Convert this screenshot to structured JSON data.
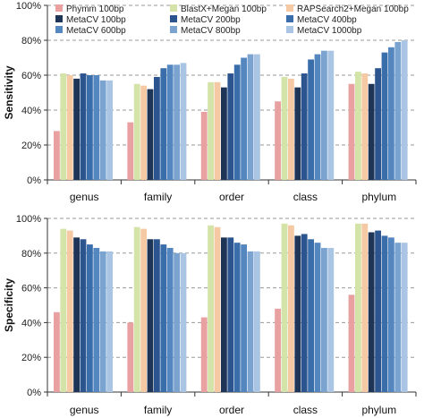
{
  "chart_data": [
    {
      "type": "bar",
      "panel": "top",
      "ylabel": "Sensitivity",
      "ylim": [
        0,
        100
      ],
      "yticks": [
        "0%",
        "20%",
        "40%",
        "60%",
        "80%",
        "100%"
      ],
      "grid": "horizontal dashed",
      "legend": "top",
      "categories": [
        "genus",
        "family",
        "order",
        "class",
        "phylum"
      ],
      "series": [
        {
          "name": "Phymm 100bp",
          "color": "#e8a0a0",
          "values": [
            28,
            33,
            39,
            45,
            55
          ]
        },
        {
          "name": "BlastX+Megan 100bp",
          "color": "#d4e3a8",
          "values": [
            61,
            55,
            56,
            59,
            62
          ]
        },
        {
          "name": "RAPSearch2+Megan 100bp",
          "color": "#f5c9a3",
          "values": [
            60,
            54,
            56,
            58,
            61
          ]
        },
        {
          "name": "MetaCV 100bp",
          "color": "#1f3558",
          "values": [
            58,
            52,
            53,
            53,
            55
          ]
        },
        {
          "name": "MetaCV 200bp",
          "color": "#2c5590",
          "values": [
            61,
            59,
            61,
            61,
            64
          ]
        },
        {
          "name": "MetaCV 400bp",
          "color": "#3a6eab",
          "values": [
            60,
            64,
            66,
            69,
            73
          ]
        },
        {
          "name": "MetaCV 600bp",
          "color": "#5487c0",
          "values": [
            60,
            66,
            70,
            72,
            76
          ]
        },
        {
          "name": "MetaCV 800bp",
          "color": "#7aa3cf",
          "values": [
            57,
            66,
            72,
            74,
            79
          ]
        },
        {
          "name": "MetaCV 1000bp",
          "color": "#a9c5e3",
          "values": [
            57,
            67,
            72,
            74,
            80
          ]
        }
      ]
    },
    {
      "type": "bar",
      "panel": "bottom",
      "ylabel": "Specificity",
      "ylim": [
        0,
        100
      ],
      "yticks": [
        "0%",
        "20%",
        "40%",
        "60%",
        "80%",
        "100%"
      ],
      "grid": "horizontal dashed",
      "categories": [
        "genus",
        "family",
        "order",
        "class",
        "phylum"
      ],
      "series": [
        {
          "name": "Phymm 100bp",
          "color": "#e8a0a0",
          "values": [
            46,
            40,
            43,
            48,
            56
          ]
        },
        {
          "name": "BlastX+Megan 100bp",
          "color": "#d4e3a8",
          "values": [
            94,
            95,
            96,
            97,
            97
          ]
        },
        {
          "name": "RAPSearch2+Megan 100bp",
          "color": "#f5c9a3",
          "values": [
            93,
            94,
            95,
            96,
            97
          ]
        },
        {
          "name": "MetaCV 100bp",
          "color": "#1f3558",
          "values": [
            89,
            88,
            89,
            90,
            92
          ]
        },
        {
          "name": "MetaCV 200bp",
          "color": "#2c5590",
          "values": [
            88,
            88,
            89,
            91,
            93
          ]
        },
        {
          "name": "MetaCV 400bp",
          "color": "#3a6eab",
          "values": [
            85,
            85,
            86,
            88,
            90
          ]
        },
        {
          "name": "MetaCV 600bp",
          "color": "#5487c0",
          "values": [
            83,
            83,
            85,
            86,
            89
          ]
        },
        {
          "name": "MetaCV 800bp",
          "color": "#7aa3cf",
          "values": [
            81,
            80,
            81,
            83,
            86
          ]
        },
        {
          "name": "MetaCV 1000bp",
          "color": "#a9c5e3",
          "values": [
            81,
            80,
            81,
            83,
            86
          ]
        }
      ]
    }
  ]
}
